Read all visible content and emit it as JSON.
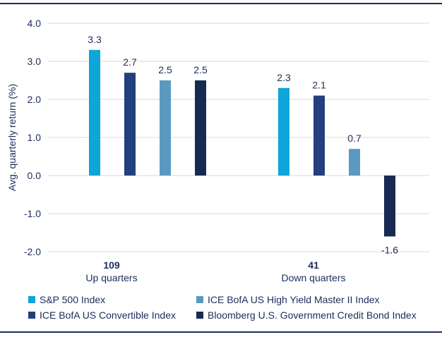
{
  "chart_data": {
    "type": "bar",
    "ylabel": "Avg. quarterly return (%)",
    "ylim": [
      -2.0,
      4.0
    ],
    "yticks": [
      "4.0",
      "3.0",
      "2.0",
      "1.0",
      "0.0",
      "-1.0",
      "-2.0"
    ],
    "ytick_values": [
      4,
      3,
      2,
      1,
      0,
      -1,
      -2
    ],
    "groups": [
      {
        "count": "109",
        "label": "Up quarters"
      },
      {
        "count": "41",
        "label": "Down quarters"
      }
    ],
    "series": [
      {
        "name": "S&P 500 Index",
        "color": "#0ea5d8",
        "values": [
          3.3,
          2.3
        ],
        "labels": [
          "3.3",
          "2.3"
        ]
      },
      {
        "name": "ICE BofA US Convertible Index",
        "color": "#233f7e",
        "values": [
          2.7,
          2.1
        ],
        "labels": [
          "2.7",
          "2.1"
        ]
      },
      {
        "name": "ICE BofA US High Yield Master II Index",
        "color": "#5b9ac0",
        "values": [
          2.5,
          0.7
        ],
        "labels": [
          "2.5",
          "0.7"
        ]
      },
      {
        "name": "Bloomberg U.S. Government Credit Bond Index",
        "color": "#172a52",
        "values": [
          2.5,
          -1.6
        ],
        "labels": [
          "2.5",
          "-1.6"
        ]
      }
    ],
    "legend_position": "bottom"
  }
}
